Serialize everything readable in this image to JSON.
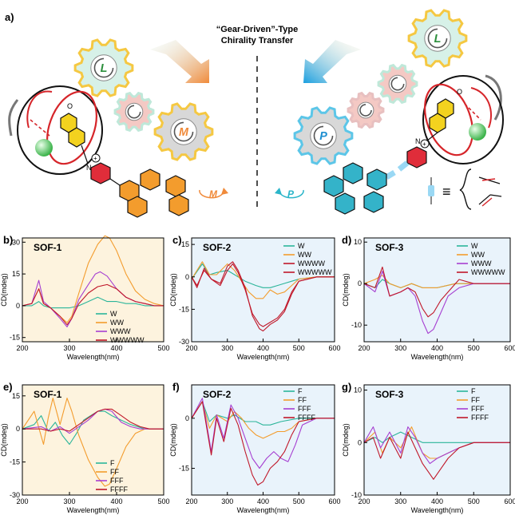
{
  "figure": {
    "panel_a_label": "a)",
    "title_line1": "“Gear-Driven”-Type",
    "title_line2": "Chirality Transfer",
    "gear_labels": {
      "l": "L",
      "m": "M",
      "p": "P"
    },
    "n_plus": "N",
    "plus": "+",
    "carbonyl_o": "O",
    "ring_o": "O",
    "equiv_symbol": "≡"
  },
  "colors": {
    "W": "#2bb59a",
    "WW": "#f39c2d",
    "WWW": "#a63fd1",
    "WWWW": "#c0182a",
    "F": "#2bb59a",
    "FF": "#f39c2d",
    "FFF": "#a63fd1",
    "FFFF": "#c0182a",
    "bg_sof1": "#fdf3de",
    "bg_sof23": "#e9f3fb"
  },
  "chart_data": [
    {
      "panel": "b)",
      "type": "line",
      "title": "SOF-1",
      "xlabel": "Wavelength(nm)",
      "ylabel": "CD(mdeg)",
      "xlim": [
        200,
        500
      ],
      "ylim": [
        -17,
        32
      ],
      "xticks": [
        200,
        300,
        400,
        500
      ],
      "yticks": [
        30,
        15,
        0,
        -15
      ],
      "legend_position": "bottom-right",
      "series": [
        {
          "name": "W",
          "x": [
            200,
            220,
            235,
            245,
            260,
            280,
            300,
            320,
            340,
            360,
            380,
            400,
            420,
            440,
            460,
            480,
            500
          ],
          "y": [
            0,
            0,
            2,
            0,
            -1,
            -1,
            -1,
            0,
            2,
            4,
            2,
            2,
            1,
            1,
            0,
            0,
            0
          ]
        },
        {
          "name": "WW",
          "x": [
            200,
            220,
            235,
            245,
            260,
            280,
            295,
            305,
            320,
            340,
            360,
            375,
            385,
            400,
            420,
            440,
            460,
            480,
            500
          ],
          "y": [
            0,
            1,
            8,
            1,
            -1,
            -5,
            -8,
            -5,
            6,
            20,
            29,
            33,
            32,
            26,
            15,
            7,
            3,
            1,
            0
          ]
        },
        {
          "name": "WWW",
          "x": [
            200,
            220,
            235,
            245,
            260,
            280,
            295,
            305,
            320,
            340,
            355,
            365,
            380,
            400,
            420,
            440,
            460,
            480,
            500
          ],
          "y": [
            0,
            1,
            12,
            2,
            -1,
            -6,
            -10,
            -6,
            3,
            10,
            15,
            16,
            14,
            8,
            4,
            2,
            1,
            0,
            0
          ]
        },
        {
          "name": "WWWWW",
          "x": [
            200,
            220,
            235,
            245,
            260,
            280,
            295,
            305,
            320,
            340,
            360,
            380,
            400,
            420,
            440,
            460,
            480,
            500
          ],
          "y": [
            0,
            1,
            8,
            1,
            -1,
            -5,
            -9,
            -6,
            1,
            6,
            9,
            10,
            8,
            4,
            2,
            1,
            0,
            0
          ]
        }
      ]
    },
    {
      "panel": "c)",
      "type": "line",
      "title": "SOF-2",
      "xlabel": "Wavelength(nm)",
      "ylabel": "CD(mdeg)",
      "xlim": [
        200,
        600
      ],
      "ylim": [
        -30,
        18
      ],
      "xticks": [
        200,
        300,
        400,
        500,
        600
      ],
      "yticks": [
        15,
        0,
        -15,
        -30
      ],
      "legend_position": "top-right",
      "series": [
        {
          "name": "W",
          "x": [
            200,
            230,
            250,
            270,
            300,
            320,
            350,
            380,
            400,
            420,
            440,
            460,
            480,
            500,
            550,
            600
          ],
          "y": [
            -1,
            6,
            1,
            2,
            3,
            1,
            -2,
            -4,
            -5,
            -5,
            -4,
            -3,
            -2,
            -1,
            0,
            0
          ]
        },
        {
          "name": "WW",
          "x": [
            200,
            230,
            250,
            270,
            300,
            320,
            340,
            360,
            380,
            400,
            420,
            440,
            460,
            480,
            500,
            550,
            600
          ],
          "y": [
            -1,
            7,
            1,
            1,
            6,
            3,
            -2,
            -7,
            -10,
            -10,
            -6,
            -8,
            -7,
            -4,
            -1,
            0,
            0
          ]
        },
        {
          "name": "WWWW",
          "x": [
            200,
            215,
            235,
            255,
            280,
            300,
            315,
            330,
            350,
            370,
            390,
            400,
            420,
            440,
            460,
            480,
            500,
            550,
            600
          ],
          "y": [
            0,
            -5,
            4,
            -1,
            -3,
            5,
            7,
            3,
            -5,
            -18,
            -24,
            -25,
            -22,
            -20,
            -16,
            -8,
            -2,
            0,
            0
          ]
        },
        {
          "name": "WWWWW",
          "x": [
            200,
            215,
            235,
            255,
            280,
            300,
            315,
            330,
            350,
            370,
            390,
            400,
            420,
            440,
            460,
            480,
            500,
            550,
            600
          ],
          "y": [
            0,
            -4,
            3,
            -1,
            -4,
            3,
            6,
            2,
            -6,
            -17,
            -22,
            -23,
            -21,
            -19,
            -15,
            -7,
            -2,
            0,
            0
          ]
        }
      ]
    },
    {
      "panel": "d)",
      "type": "line",
      "title": "SOF-3",
      "xlabel": "Wavelength(nm)",
      "ylabel": "CD(mdeg)",
      "xlim": [
        200,
        600
      ],
      "ylim": [
        -14,
        11
      ],
      "xticks": [
        200,
        300,
        400,
        500,
        600
      ],
      "yticks": [
        10,
        0,
        -10
      ],
      "legend_position": "top-right",
      "series": [
        {
          "name": "W",
          "x": [
            200,
            230,
            250,
            270,
            300,
            330,
            360,
            400,
            450,
            500,
            550,
            600
          ],
          "y": [
            0,
            -1,
            1,
            0,
            -1,
            0,
            -1,
            -1,
            0,
            0,
            0,
            0
          ]
        },
        {
          "name": "WW",
          "x": [
            200,
            230,
            250,
            270,
            300,
            330,
            360,
            380,
            400,
            450,
            500,
            550,
            600
          ],
          "y": [
            0,
            1,
            2,
            0,
            -1,
            0,
            -1,
            -1,
            -1,
            0,
            0,
            0,
            0
          ]
        },
        {
          "name": "WWW",
          "x": [
            200,
            230,
            250,
            270,
            300,
            320,
            340,
            360,
            375,
            390,
            410,
            430,
            460,
            500,
            550,
            600
          ],
          "y": [
            0,
            -2,
            3,
            -3,
            -2,
            -1,
            -3,
            -9,
            -12,
            -11,
            -7,
            -3,
            -1,
            0,
            0,
            0
          ]
        },
        {
          "name": "WWWWW",
          "x": [
            200,
            230,
            250,
            270,
            300,
            320,
            340,
            360,
            375,
            390,
            410,
            430,
            460,
            500,
            550,
            600
          ],
          "y": [
            0,
            -1,
            4,
            -3,
            -2,
            -1,
            -2,
            -6,
            -8,
            -7,
            -4,
            -2,
            1,
            0,
            0,
            0
          ]
        }
      ]
    },
    {
      "panel": "e)",
      "type": "line",
      "title": "SOF-1",
      "xlabel": "Wavelength(nm)",
      "ylabel": "CD(mdeg)",
      "xlim": [
        200,
        500
      ],
      "ylim": [
        -30,
        20
      ],
      "xticks": [
        200,
        300,
        400,
        500
      ],
      "yticks": [
        15,
        0,
        -15,
        -30
      ],
      "legend_position": "bottom-right",
      "series": [
        {
          "name": "F",
          "x": [
            200,
            225,
            240,
            255,
            270,
            285,
            300,
            315,
            330,
            345,
            360,
            375,
            390,
            410,
            430,
            460,
            500
          ],
          "y": [
            0,
            2,
            6,
            -1,
            3,
            -3,
            -7,
            -2,
            4,
            6,
            8,
            8,
            6,
            4,
            2,
            0,
            0
          ]
        },
        {
          "name": "FF",
          "x": [
            200,
            225,
            245,
            255,
            265,
            280,
            295,
            305,
            320,
            340,
            360,
            375,
            385,
            400,
            420,
            440,
            460,
            480,
            500
          ],
          "y": [
            0,
            8,
            -7,
            5,
            14,
            2,
            14,
            8,
            -3,
            -14,
            -22,
            -26,
            -25,
            -18,
            -8,
            -2,
            0,
            0,
            0
          ]
        },
        {
          "name": "FFF",
          "x": [
            200,
            240,
            260,
            280,
            300,
            320,
            340,
            360,
            375,
            390,
            410,
            430,
            450,
            470,
            500
          ],
          "y": [
            0,
            1,
            -1,
            1,
            -2,
            1,
            4,
            8,
            9,
            8,
            3,
            1,
            0,
            0,
            0
          ]
        },
        {
          "name": "FFFF",
          "x": [
            200,
            240,
            260,
            280,
            300,
            320,
            340,
            360,
            375,
            390,
            410,
            430,
            450,
            470,
            500
          ],
          "y": [
            0,
            0,
            -1,
            0,
            -1,
            2,
            5,
            8,
            9,
            9,
            6,
            3,
            1,
            0,
            0
          ]
        }
      ]
    },
    {
      "panel": "f)",
      "type": "line",
      "title": "SOF-2",
      "xlabel": "Wavelength(nm)",
      "ylabel": "CD(mdeg)",
      "xlim": [
        200,
        600
      ],
      "ylim": [
        -23,
        10
      ],
      "xticks": [
        200,
        300,
        400,
        500,
        600
      ],
      "yticks": [
        0,
        -15
      ],
      "legend_position": "top-right",
      "series": [
        {
          "name": "F",
          "x": [
            200,
            230,
            250,
            270,
            300,
            320,
            350,
            380,
            400,
            420,
            450,
            500,
            550,
            600
          ],
          "y": [
            0,
            5,
            -1,
            1,
            0,
            1,
            -1,
            -1,
            -2,
            -2,
            -1,
            0,
            0,
            0
          ]
        },
        {
          "name": "FF",
          "x": [
            200,
            230,
            250,
            270,
            300,
            320,
            340,
            360,
            380,
            400,
            420,
            440,
            460,
            480,
            500,
            550,
            600
          ],
          "y": [
            0,
            5,
            -3,
            1,
            -1,
            2,
            0,
            -3,
            -5,
            -6,
            -5,
            -4,
            -4,
            -3,
            -1,
            0,
            0
          ]
        },
        {
          "name": "FFF",
          "x": [
            200,
            230,
            255,
            270,
            290,
            310,
            330,
            350,
            370,
            390,
            410,
            430,
            450,
            470,
            490,
            510,
            550,
            600
          ],
          "y": [
            0,
            6,
            -10,
            1,
            -6,
            4,
            0,
            -6,
            -12,
            -15,
            -12,
            -10,
            -12,
            -13,
            -8,
            -2,
            0,
            0
          ]
        },
        {
          "name": "FFFF",
          "x": [
            200,
            230,
            255,
            270,
            290,
            310,
            330,
            350,
            370,
            385,
            400,
            420,
            440,
            460,
            480,
            500,
            550,
            600
          ],
          "y": [
            0,
            5,
            -11,
            0,
            -7,
            3,
            -2,
            -10,
            -17,
            -20,
            -19,
            -15,
            -13,
            -10,
            -5,
            -1,
            0,
            0
          ]
        }
      ]
    },
    {
      "panel": "g)",
      "type": "line",
      "title": "SOF-3",
      "xlabel": "Wavelength(nm)",
      "ylabel": "CD(mdeg)",
      "xlim": [
        200,
        600
      ],
      "ylim": [
        -10,
        11
      ],
      "xticks": [
        200,
        300,
        400,
        500,
        600
      ],
      "yticks": [
        10,
        0,
        -10
      ],
      "legend_position": "top-right",
      "series": [
        {
          "name": "F",
          "x": [
            200,
            230,
            250,
            270,
            300,
            330,
            360,
            400,
            450,
            500,
            550,
            600
          ],
          "y": [
            0,
            1,
            0,
            1,
            2,
            1,
            0,
            0,
            0,
            0,
            0,
            0
          ]
        },
        {
          "name": "FF",
          "x": [
            200,
            230,
            250,
            270,
            300,
            330,
            360,
            380,
            400,
            430,
            460,
            500,
            550,
            600
          ],
          "y": [
            0,
            2,
            -2,
            1,
            -1,
            3,
            -2,
            -3,
            -3,
            -2,
            -1,
            0,
            0,
            0
          ]
        },
        {
          "name": "FFF",
          "x": [
            200,
            225,
            245,
            270,
            300,
            320,
            340,
            360,
            380,
            400,
            430,
            460,
            500,
            550,
            600
          ],
          "y": [
            0,
            3,
            -1,
            2,
            -2,
            3,
            1,
            -2,
            -4,
            -3,
            -2,
            -1,
            0,
            0,
            0
          ]
        },
        {
          "name": "FFFF",
          "x": [
            200,
            225,
            245,
            270,
            300,
            320,
            340,
            360,
            380,
            390,
            410,
            430,
            460,
            500,
            550,
            600
          ],
          "y": [
            0,
            1,
            -3,
            1,
            -3,
            2,
            -1,
            -4,
            -6,
            -7,
            -5,
            -3,
            -1,
            0,
            0,
            0
          ]
        }
      ]
    }
  ]
}
